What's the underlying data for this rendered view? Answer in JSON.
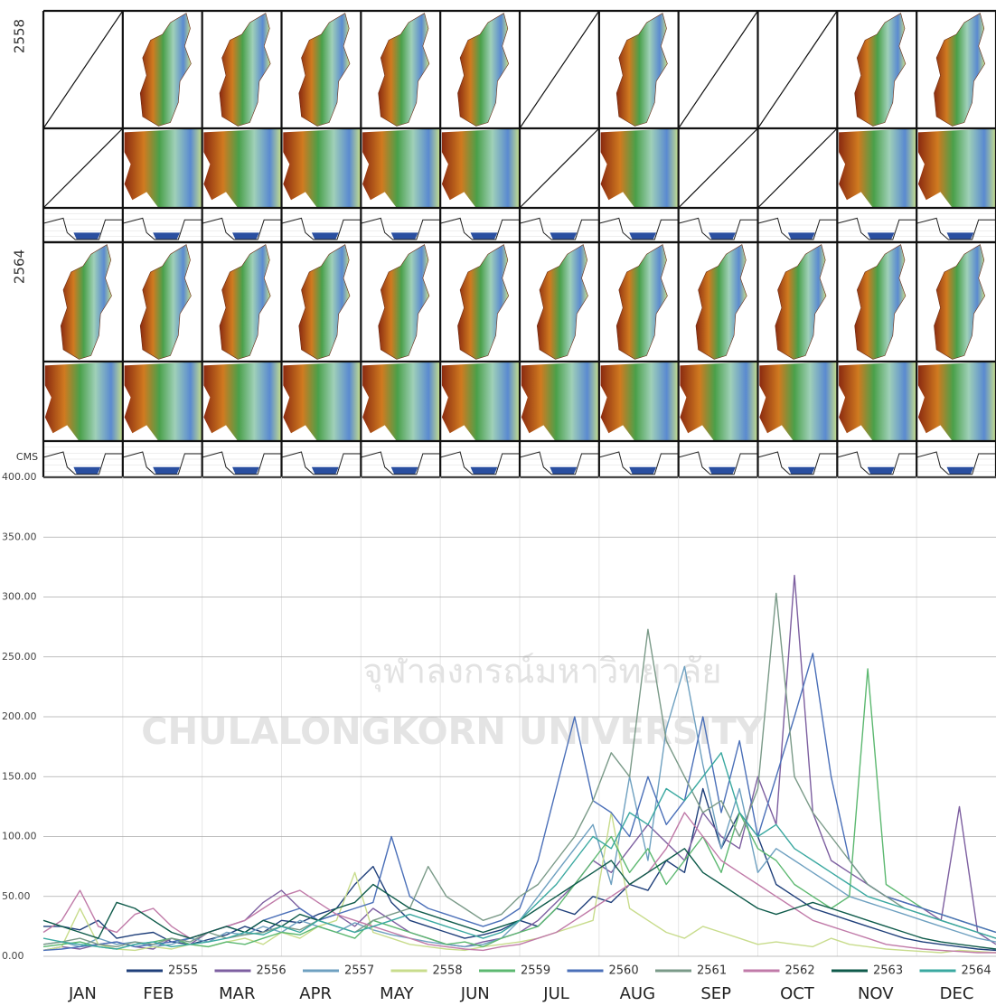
{
  "chart_data": {
    "type": "line",
    "panel_labels": [
      "2558",
      "2564"
    ],
    "unit_label": "CMS",
    "watermark": [
      "จุฬาลงกรณ์มหาวิทยาลัย",
      "CHULALONGKORN UNIVERSITY"
    ],
    "xlim": [
      1,
      365
    ],
    "xticks": [
      {
        "value": 16,
        "label": "JAN"
      },
      {
        "value": 45,
        "label": "FEB"
      },
      {
        "value": 75,
        "label": "MAR"
      },
      {
        "value": 105,
        "label": "APR"
      },
      {
        "value": 136,
        "label": "MAY"
      },
      {
        "value": 166,
        "label": "JUN"
      },
      {
        "value": 197,
        "label": "JUL"
      },
      {
        "value": 228,
        "label": "AUG"
      },
      {
        "value": 258,
        "label": "SEP"
      },
      {
        "value": 289,
        "label": "OCT"
      },
      {
        "value": 319,
        "label": "NOV"
      },
      {
        "value": 350,
        "label": "DEC"
      }
    ],
    "ylim": [
      0,
      400
    ],
    "yticks": [
      {
        "value": 0,
        "label": "0.00"
      },
      {
        "value": 50,
        "label": "50.00"
      },
      {
        "value": 100,
        "label": "100.00"
      },
      {
        "value": 150,
        "label": "150.00"
      },
      {
        "value": 200,
        "label": "200.00"
      },
      {
        "value": 250,
        "label": "250.00"
      },
      {
        "value": 300,
        "label": "300.00"
      },
      {
        "value": 350,
        "label": "350.00"
      },
      {
        "value": 400,
        "label": "400.00"
      }
    ],
    "grid": true,
    "legend": "bottom",
    "x": [
      1,
      8,
      15,
      22,
      29,
      36,
      43,
      50,
      57,
      64,
      71,
      78,
      85,
      92,
      99,
      106,
      113,
      120,
      127,
      134,
      141,
      148,
      155,
      162,
      169,
      176,
      183,
      190,
      197,
      204,
      211,
      218,
      225,
      232,
      239,
      246,
      253,
      260,
      267,
      274,
      281,
      288,
      295,
      302,
      309,
      316,
      323,
      330,
      337,
      344,
      351,
      358,
      365
    ],
    "series": [
      {
        "name": "2555",
        "color": "#1f3f7a",
        "values": [
          25,
          25,
          22,
          30,
          15,
          18,
          20,
          12,
          10,
          14,
          18,
          25,
          20,
          30,
          28,
          35,
          40,
          60,
          75,
          45,
          30,
          25,
          20,
          15,
          18,
          22,
          30,
          25,
          40,
          35,
          50,
          45,
          60,
          55,
          80,
          70,
          140,
          90,
          120,
          100,
          60,
          50,
          40,
          35,
          30,
          25,
          20,
          15,
          12,
          10,
          8,
          6,
          5
        ]
      },
      {
        "name": "2556",
        "color": "#7d5fa0",
        "values": [
          5,
          8,
          6,
          10,
          12,
          8,
          6,
          15,
          10,
          20,
          25,
          30,
          45,
          55,
          40,
          30,
          35,
          25,
          40,
          30,
          20,
          15,
          10,
          8,
          12,
          15,
          20,
          30,
          45,
          60,
          80,
          70,
          90,
          110,
          95,
          80,
          120,
          100,
          90,
          150,
          110,
          318,
          120,
          80,
          70,
          60,
          50,
          45,
          40,
          30,
          125,
          20,
          10
        ]
      },
      {
        "name": "2557",
        "color": "#6ea0c0",
        "values": [
          10,
          12,
          8,
          15,
          10,
          12,
          8,
          10,
          15,
          12,
          20,
          18,
          25,
          20,
          30,
          25,
          20,
          28,
          22,
          18,
          15,
          12,
          10,
          8,
          10,
          15,
          30,
          50,
          70,
          90,
          110,
          60,
          150,
          80,
          190,
          242,
          160,
          90,
          140,
          70,
          90,
          80,
          70,
          60,
          50,
          45,
          40,
          35,
          30,
          25,
          20,
          15,
          12
        ]
      },
      {
        "name": "2558",
        "color": "#c8dc8c",
        "values": [
          5,
          8,
          40,
          10,
          6,
          5,
          8,
          6,
          10,
          8,
          12,
          15,
          10,
          20,
          15,
          25,
          30,
          70,
          20,
          15,
          10,
          8,
          6,
          5,
          8,
          10,
          12,
          15,
          20,
          25,
          30,
          120,
          40,
          30,
          20,
          15,
          25,
          20,
          15,
          10,
          12,
          10,
          8,
          15,
          10,
          8,
          6,
          5,
          4,
          3,
          5,
          4,
          3
        ]
      },
      {
        "name": "2559",
        "color": "#5cb870",
        "values": [
          8,
          10,
          12,
          8,
          6,
          10,
          12,
          15,
          10,
          8,
          12,
          10,
          15,
          20,
          18,
          25,
          20,
          15,
          30,
          25,
          20,
          15,
          10,
          12,
          8,
          15,
          20,
          25,
          40,
          60,
          80,
          100,
          70,
          90,
          60,
          80,
          100,
          70,
          120,
          90,
          80,
          60,
          50,
          40,
          50,
          240,
          60,
          50,
          40,
          35,
          30,
          25,
          20
        ]
      },
      {
        "name": "2560",
        "color": "#4a6fb8",
        "values": [
          5,
          6,
          8,
          10,
          12,
          8,
          10,
          12,
          15,
          20,
          25,
          20,
          30,
          35,
          40,
          30,
          35,
          40,
          45,
          100,
          50,
          40,
          35,
          30,
          25,
          30,
          40,
          80,
          140,
          200,
          130,
          120,
          100,
          150,
          110,
          130,
          200,
          120,
          180,
          100,
          150,
          200,
          253,
          150,
          80,
          60,
          50,
          45,
          40,
          35,
          30,
          25,
          20
        ]
      },
      {
        "name": "2561",
        "color": "#7a9a88",
        "values": [
          10,
          12,
          15,
          10,
          8,
          12,
          10,
          15,
          12,
          20,
          15,
          18,
          20,
          25,
          22,
          30,
          25,
          20,
          30,
          35,
          40,
          75,
          50,
          40,
          30,
          35,
          50,
          60,
          80,
          100,
          130,
          170,
          150,
          273,
          180,
          150,
          120,
          130,
          100,
          140,
          303,
          150,
          120,
          100,
          80,
          60,
          50,
          40,
          35,
          30,
          25,
          20,
          15
        ]
      },
      {
        "name": "2562",
        "color": "#c07aa8",
        "values": [
          20,
          30,
          55,
          25,
          20,
          35,
          40,
          25,
          15,
          20,
          25,
          30,
          40,
          50,
          55,
          45,
          35,
          30,
          25,
          20,
          15,
          10,
          8,
          6,
          5,
          8,
          10,
          15,
          20,
          30,
          40,
          50,
          60,
          70,
          90,
          120,
          100,
          80,
          70,
          60,
          50,
          40,
          30,
          25,
          20,
          15,
          10,
          8,
          6,
          5,
          4,
          3,
          3
        ]
      },
      {
        "name": "2563",
        "color": "#0e5a4a",
        "values": [
          30,
          25,
          20,
          15,
          45,
          40,
          30,
          20,
          15,
          20,
          25,
          20,
          30,
          25,
          35,
          30,
          40,
          45,
          60,
          50,
          40,
          35,
          30,
          25,
          20,
          25,
          30,
          40,
          50,
          60,
          70,
          80,
          60,
          70,
          80,
          90,
          70,
          60,
          50,
          40,
          35,
          40,
          45,
          40,
          35,
          30,
          25,
          20,
          15,
          12,
          10,
          8,
          6
        ]
      },
      {
        "name": "2564",
        "color": "#3aa8a0",
        "values": [
          15,
          12,
          10,
          8,
          6,
          10,
          12,
          8,
          10,
          12,
          15,
          20,
          18,
          25,
          20,
          30,
          25,
          20,
          25,
          30,
          35,
          30,
          25,
          20,
          15,
          20,
          30,
          45,
          60,
          80,
          100,
          90,
          120,
          110,
          140,
          130,
          150,
          170,
          120,
          100,
          110,
          90,
          80,
          70,
          60,
          50,
          45,
          40,
          35,
          30,
          25,
          20,
          15
        ]
      }
    ]
  }
}
